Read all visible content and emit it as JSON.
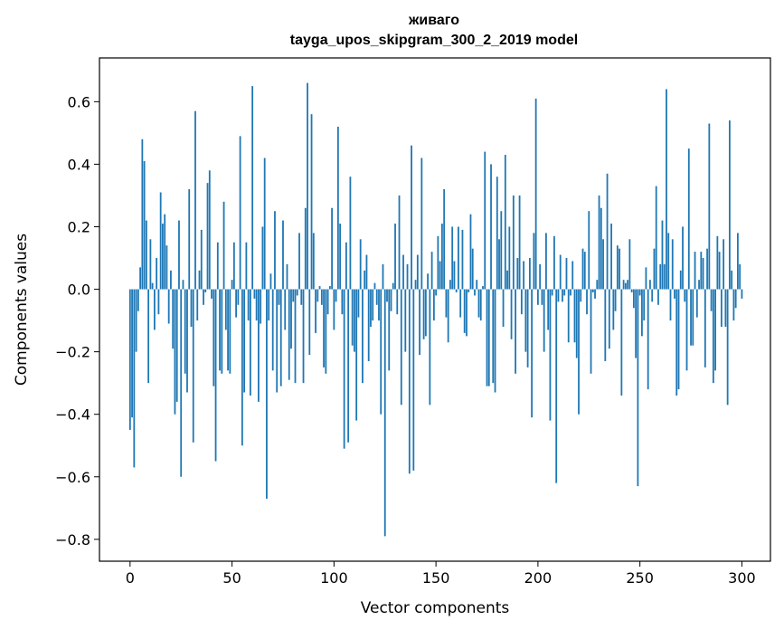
{
  "chart_data": {
    "type": "bar",
    "title": "живаго",
    "subtitle": "tayga_upos_skipgram_300_2_2019 model",
    "xlabel": "Vector components",
    "ylabel": "Components values",
    "xlim": [
      -15,
      314
    ],
    "ylim": [
      -0.87,
      0.74
    ],
    "xticks": [
      0,
      50,
      100,
      150,
      200,
      250,
      300
    ],
    "xtick_labels": [
      "0",
      "50",
      "100",
      "150",
      "200",
      "250",
      "300"
    ],
    "yticks": [
      -0.8,
      -0.6,
      -0.4,
      -0.2,
      0.0,
      0.2,
      0.4,
      0.6
    ],
    "ytick_labels": [
      "−0.8",
      "−0.6",
      "−0.4",
      "−0.2",
      "0.0",
      "0.2",
      "0.4",
      "0.6"
    ],
    "bar_color": "#1f77b4",
    "values": [
      -0.45,
      -0.41,
      -0.57,
      -0.2,
      -0.07,
      0.07,
      0.48,
      0.41,
      0.22,
      -0.3,
      0.16,
      0.02,
      -0.13,
      0.1,
      -0.08,
      0.31,
      0.21,
      0.24,
      0.14,
      -0.11,
      0.06,
      -0.19,
      -0.4,
      -0.36,
      0.22,
      -0.6,
      0.03,
      -0.27,
      -0.33,
      0.32,
      -0.12,
      -0.49,
      0.57,
      -0.1,
      0.06,
      0.19,
      -0.05,
      -0.01,
      0.34,
      0.38,
      -0.03,
      -0.31,
      -0.55,
      0.15,
      -0.26,
      -0.27,
      0.28,
      -0.13,
      -0.26,
      -0.27,
      0.03,
      0.15,
      -0.09,
      -0.05,
      0.49,
      -0.5,
      -0.33,
      0.15,
      -0.1,
      -0.34,
      0.65,
      -0.03,
      -0.1,
      -0.36,
      -0.11,
      0.2,
      0.42,
      -0.67,
      -0.1,
      0.05,
      -0.26,
      0.25,
      -0.33,
      -0.05,
      -0.31,
      0.22,
      -0.13,
      0.08,
      -0.29,
      -0.19,
      -0.04,
      -0.3,
      -0.02,
      0.18,
      -0.05,
      -0.3,
      0.26,
      0.66,
      -0.21,
      0.56,
      0.18,
      -0.14,
      -0.04,
      0.01,
      -0.05,
      -0.25,
      -0.27,
      -0.08,
      0.01,
      0.26,
      -0.13,
      -0.04,
      0.52,
      0.21,
      -0.08,
      -0.51,
      0.15,
      -0.49,
      0.36,
      -0.18,
      -0.2,
      -0.42,
      -0.09,
      0.16,
      -0.3,
      0.06,
      0.11,
      -0.23,
      -0.12,
      -0.1,
      0.02,
      -0.05,
      -0.1,
      -0.4,
      0.08,
      -0.79,
      -0.04,
      -0.26,
      -0.07,
      0.02,
      0.21,
      -0.08,
      0.3,
      -0.37,
      0.11,
      -0.2,
      0.08,
      -0.59,
      0.46,
      -0.58,
      0.03,
      0.11,
      -0.21,
      0.42,
      -0.16,
      -0.15,
      0.05,
      -0.37,
      0.12,
      -0.1,
      -0.02,
      0.17,
      0.09,
      0.21,
      0.32,
      -0.09,
      -0.17,
      0.03,
      0.2,
      0.09,
      -0.01,
      0.2,
      -0.09,
      0.19,
      -0.14,
      -0.15,
      -0.01,
      0.24,
      0.13,
      -0.02,
      0.03,
      -0.09,
      -0.1,
      0.01,
      0.44,
      -0.31,
      -0.31,
      0.4,
      -0.3,
      -0.33,
      0.36,
      0.16,
      0.25,
      -0.12,
      0.43,
      0.06,
      0.2,
      -0.16,
      0.3,
      -0.27,
      0.1,
      0.3,
      -0.08,
      0.09,
      -0.2,
      -0.25,
      0.1,
      -0.41,
      0.18,
      0.61,
      -0.05,
      0.08,
      -0.05,
      -0.2,
      0.18,
      -0.13,
      -0.42,
      -0.02,
      0.17,
      -0.62,
      -0.04,
      0.11,
      -0.04,
      -0.02,
      0.1,
      -0.17,
      -0.02,
      0.09,
      -0.17,
      -0.22,
      -0.4,
      -0.04,
      0.13,
      0.12,
      -0.08,
      0.25,
      -0.27,
      -0.01,
      -0.03,
      0.03,
      0.3,
      0.26,
      0.16,
      -0.23,
      0.37,
      -0.19,
      0.21,
      -0.13,
      -0.07,
      0.14,
      0.13,
      -0.34,
      0.03,
      0.02,
      0.03,
      0.16,
      -0.01,
      -0.06,
      -0.22,
      -0.63,
      -0.02,
      -0.15,
      -0.1,
      0.07,
      -0.32,
      0.03,
      -0.04,
      0.13,
      0.33,
      -0.05,
      0.08,
      0.22,
      0.08,
      0.64,
      0.18,
      -0.1,
      0.16,
      -0.03,
      -0.34,
      -0.32,
      0.06,
      0.2,
      -0.04,
      -0.26,
      0.45,
      -0.18,
      -0.18,
      0.12,
      -0.09,
      0.03,
      0.12,
      0.1,
      -0.25,
      0.13,
      0.53,
      -0.07,
      -0.3,
      -0.26,
      0.17,
      0.12,
      -0.12,
      0.16,
      -0.12,
      -0.37,
      0.54,
      0.06,
      -0.1,
      -0.06,
      0.18,
      0.08,
      -0.03
    ]
  }
}
